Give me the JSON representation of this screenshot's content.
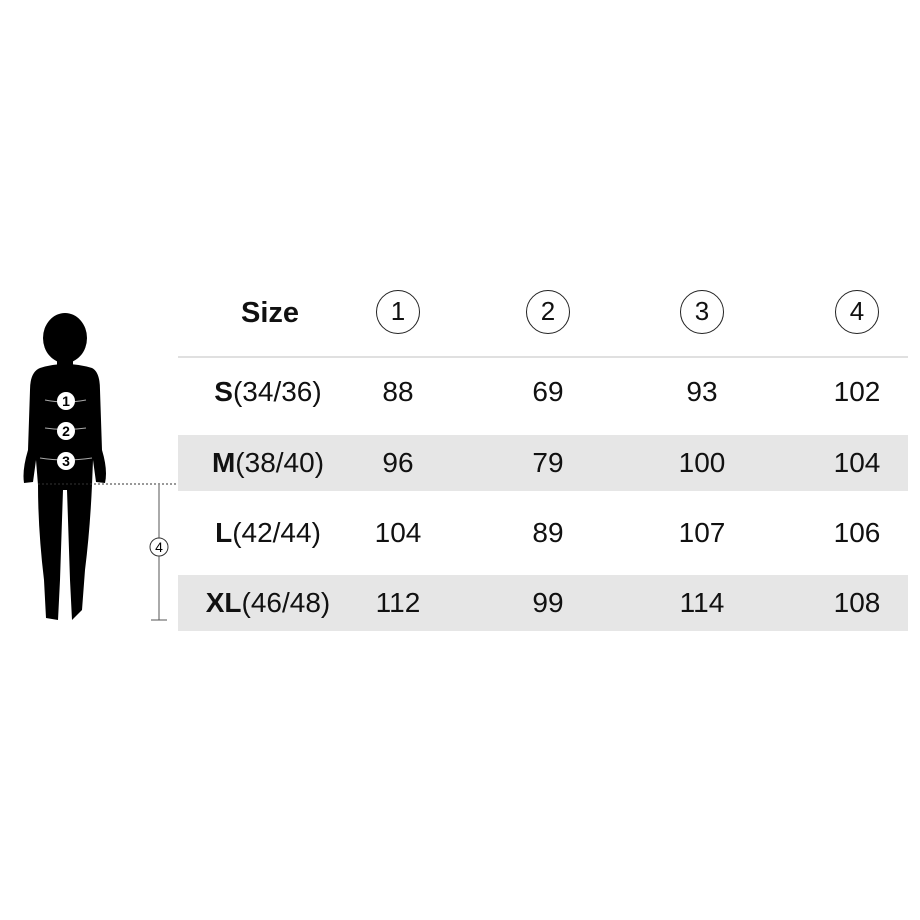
{
  "header": {
    "size_label": "Size",
    "columns": [
      "1",
      "2",
      "3",
      "4"
    ]
  },
  "rows": [
    {
      "size": "S",
      "eu": "(34/36)",
      "values": [
        "88",
        "69",
        "93",
        "102"
      ]
    },
    {
      "size": "M",
      "eu": "(38/40)",
      "values": [
        "96",
        "79",
        "100",
        "104"
      ]
    },
    {
      "size": "L",
      "eu": "(42/44)",
      "values": [
        "104",
        "89",
        "107",
        "106"
      ]
    },
    {
      "size": "XL",
      "eu": "(46/48)",
      "values": [
        "112",
        "99",
        "114",
        "108"
      ]
    }
  ],
  "figure": {
    "markers": [
      "1",
      "2",
      "3",
      "4"
    ]
  },
  "colors": {
    "band": "#e6e6e6",
    "text": "#111111"
  }
}
